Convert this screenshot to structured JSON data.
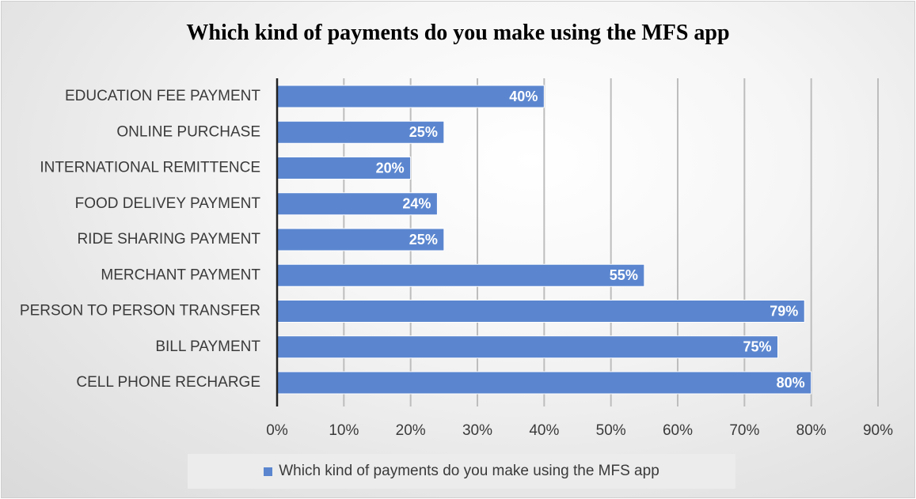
{
  "chart_data": {
    "type": "bar",
    "orientation": "horizontal",
    "title": "Which kind of payments do you make using the MFS app",
    "categories": [
      "EDUCATION FEE PAYMENT",
      "ONLINE PURCHASE",
      "INTERNATIONAL REMITTENCE",
      "FOOD DELIVEY PAYMENT",
      "RIDE SHARING PAYMENT",
      "MERCHANT PAYMENT",
      "PERSON TO PERSON TRANSFER",
      "BILL PAYMENT",
      "CELL PHONE RECHARGE"
    ],
    "series": [
      {
        "name": "Which kind of payments do you make using the MFS app",
        "values": [
          40,
          25,
          20,
          24,
          25,
          55,
          79,
          75,
          80
        ],
        "labels": [
          "40%",
          "25%",
          "20%",
          "24%",
          "25%",
          "55%",
          "79%",
          "75%",
          "80%"
        ]
      }
    ],
    "xlim": [
      0,
      90
    ],
    "xticks": [
      "0%",
      "10%",
      "20%",
      "30%",
      "40%",
      "50%",
      "60%",
      "70%",
      "80%",
      "90%"
    ],
    "grid": true,
    "legend_position": "bottom",
    "colors": {
      "bar": "#5b86cf",
      "bar_edge": "#ffffff",
      "grid": "#bdbdbd",
      "axis": "#222222"
    }
  }
}
